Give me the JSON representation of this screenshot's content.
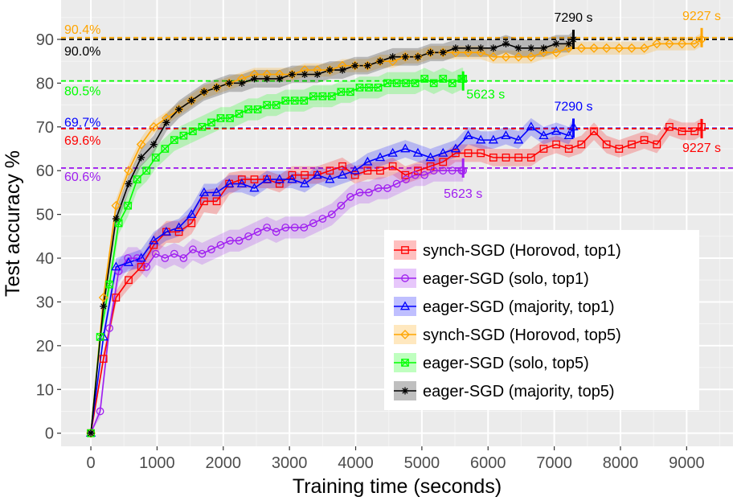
{
  "chart_data": {
    "type": "line",
    "xlabel": "Training time (seconds)",
    "ylabel": "Test accuracy %",
    "xlim": [
      -450,
      9700
    ],
    "ylim": [
      -3,
      99
    ],
    "xticks": [
      0,
      1000,
      2000,
      3000,
      4000,
      5000,
      6000,
      7000,
      8000,
      9000
    ],
    "xtick_labels": [
      "0",
      "1000",
      "2000",
      "3000",
      "4000",
      "5000",
      "6000",
      "7000",
      "8000",
      "9000"
    ],
    "yticks": [
      0,
      10,
      20,
      30,
      40,
      50,
      60,
      70,
      80,
      90
    ],
    "ytick_labels": [
      "0",
      "10",
      "20",
      "30",
      "40",
      "50",
      "60",
      "70",
      "80",
      "90"
    ],
    "grid": true,
    "series": [
      {
        "name": "synch-SGD (Horovod, top1)",
        "color": "#ff0000",
        "marker": "square",
        "x": [
          0,
          190,
          380,
          570,
          760,
          950,
          1140,
          1330,
          1520,
          1710,
          1900,
          2090,
          2280,
          2470,
          2660,
          2850,
          3040,
          3230,
          3420,
          3610,
          3800,
          3990,
          4180,
          4370,
          4560,
          4750,
          4940,
          5130,
          5320,
          5510,
          5700,
          5890,
          6080,
          6270,
          6460,
          6650,
          6840,
          7030,
          7220,
          7410,
          7600,
          7790,
          7980,
          8170,
          8360,
          8550,
          8740,
          8930,
          9120,
          9227
        ],
        "y": [
          0,
          17,
          31,
          35,
          38,
          43,
          46,
          46,
          48,
          53,
          53,
          57,
          58,
          58,
          58,
          57,
          59,
          59,
          59,
          60,
          61,
          59,
          60,
          60,
          61,
          59,
          60,
          61,
          62,
          64,
          64,
          64,
          63,
          63,
          63,
          63,
          65,
          66,
          65,
          66,
          69,
          66,
          65,
          66,
          67,
          66,
          70,
          69,
          69,
          70
        ],
        "band": [
          0,
          1.5,
          1.5,
          2,
          2,
          2.5,
          2.5,
          2.5,
          2.5,
          2.5,
          3,
          2.5,
          2,
          2,
          2,
          2,
          2,
          2,
          2,
          2,
          2,
          2,
          2,
          2,
          2,
          2,
          2,
          2,
          2,
          2,
          2,
          2,
          2,
          2,
          2,
          2,
          2,
          2,
          2,
          2,
          2,
          2,
          2,
          2,
          2,
          2,
          2,
          2,
          2,
          2
        ]
      },
      {
        "name": "eager-SGD (solo, top1)",
        "color": "#a020f0",
        "marker": "circle",
        "x": [
          0,
          140,
          280,
          420,
          560,
          700,
          840,
          980,
          1120,
          1260,
          1400,
          1540,
          1680,
          1820,
          1960,
          2100,
          2240,
          2380,
          2520,
          2660,
          2800,
          2940,
          3080,
          3220,
          3360,
          3500,
          3640,
          3780,
          3920,
          4060,
          4200,
          4340,
          4480,
          4620,
          4760,
          4900,
          5040,
          5180,
          5320,
          5460,
          5600,
          5623
        ],
        "y": [
          0,
          5,
          24,
          37,
          40,
          40,
          38,
          41,
          40,
          41,
          40,
          42,
          41,
          42,
          43,
          44,
          44,
          45,
          46,
          47,
          46,
          47,
          47,
          47,
          48,
          49,
          50,
          52,
          54,
          55,
          55,
          56,
          56,
          57,
          58,
          59,
          59,
          60,
          60,
          60,
          60,
          60
        ],
        "band": [
          0,
          1.5,
          2,
          2.5,
          2.5,
          2.5,
          2.5,
          2.5,
          2.5,
          2.5,
          2.5,
          2.5,
          2.5,
          2.5,
          2.5,
          2.5,
          2.5,
          2.5,
          2.5,
          2.5,
          2.5,
          2.5,
          2.5,
          2.5,
          2.5,
          2.5,
          2.5,
          2.5,
          2.5,
          2.5,
          2.5,
          2.5,
          2.5,
          2.5,
          2.5,
          2.5,
          2.5,
          2.5,
          2.5,
          2.5,
          2.5,
          2.5
        ]
      },
      {
        "name": "eager-SGD (majority, top1)",
        "color": "#0000ff",
        "marker": "triangle",
        "x": [
          0,
          190,
          380,
          570,
          760,
          950,
          1140,
          1330,
          1520,
          1710,
          1900,
          2090,
          2280,
          2470,
          2660,
          2850,
          3040,
          3230,
          3420,
          3610,
          3800,
          3990,
          4180,
          4370,
          4560,
          4750,
          4940,
          5130,
          5320,
          5510,
          5700,
          5890,
          6080,
          6270,
          6460,
          6650,
          6840,
          7030,
          7220,
          7290
        ],
        "y": [
          0,
          22,
          38,
          39,
          40,
          44,
          46,
          47,
          50,
          55,
          55,
          57,
          57,
          56,
          58,
          58,
          58,
          57,
          59,
          58,
          59,
          60,
          62,
          63,
          64,
          65,
          64,
          63,
          64,
          65,
          68,
          67,
          67,
          68,
          67,
          70,
          68,
          69,
          68,
          70
        ],
        "band": [
          0,
          1.5,
          2,
          2,
          2,
          2,
          2,
          2,
          2,
          2,
          2,
          2,
          2,
          2,
          2,
          2,
          2,
          2,
          2,
          2,
          2,
          2,
          2,
          2,
          2,
          2,
          2,
          2,
          2,
          2,
          2,
          2,
          2,
          2,
          2,
          2,
          2,
          2,
          2,
          2
        ]
      },
      {
        "name": "synch-SGD (Horovod, top5)",
        "color": "#ffa500",
        "marker": "diamond",
        "x": [
          0,
          190,
          380,
          570,
          760,
          950,
          1140,
          1330,
          1520,
          1710,
          1900,
          2090,
          2280,
          2470,
          2660,
          2850,
          3040,
          3230,
          3420,
          3610,
          3800,
          3990,
          4180,
          4370,
          4560,
          4750,
          4940,
          5130,
          5320,
          5510,
          5700,
          5890,
          6080,
          6270,
          6460,
          6650,
          6840,
          7030,
          7220,
          7410,
          7600,
          7790,
          7980,
          8170,
          8360,
          8550,
          8740,
          8930,
          9120,
          9227
        ],
        "y": [
          0,
          31,
          52,
          60,
          66,
          70,
          72,
          74,
          76,
          78,
          79,
          80,
          81,
          82,
          82,
          82,
          82,
          83,
          83,
          83,
          84,
          84,
          84,
          85,
          85,
          86,
          86,
          87,
          87,
          87,
          87,
          87,
          86,
          86,
          86,
          86,
          87,
          87,
          88,
          88,
          88,
          88,
          88,
          88,
          88,
          89,
          89,
          89,
          89,
          90
        ],
        "band": [
          0,
          1,
          1.5,
          1.5,
          1.5,
          1.5,
          1.5,
          1.5,
          1.5,
          1.5,
          1.5,
          1.5,
          1.5,
          1.5,
          1.5,
          1.5,
          1.5,
          1.5,
          1.5,
          1.5,
          1.5,
          1.5,
          1.5,
          1.5,
          1.5,
          1.5,
          1.5,
          1.5,
          1.5,
          1.5,
          1.5,
          1.5,
          1.5,
          1.5,
          1.5,
          1.5,
          1.5,
          1.5,
          1.5,
          1.5,
          1.5,
          1.5,
          1.5,
          1.5,
          1.5,
          1.5,
          1.5,
          1.5,
          1.5,
          1.5
        ]
      },
      {
        "name": "eager-SGD (solo, top5)",
        "color": "#00ff00",
        "marker": "square-x",
        "x": [
          0,
          140,
          280,
          420,
          560,
          700,
          840,
          980,
          1120,
          1260,
          1400,
          1540,
          1680,
          1820,
          1960,
          2100,
          2240,
          2380,
          2520,
          2660,
          2800,
          2940,
          3080,
          3220,
          3360,
          3500,
          3640,
          3780,
          3920,
          4060,
          4200,
          4340,
          4480,
          4620,
          4760,
          4900,
          5040,
          5180,
          5320,
          5460,
          5600,
          5623
        ],
        "y": [
          0,
          22,
          34,
          48,
          52,
          58,
          60,
          63,
          65,
          67,
          68,
          69,
          70,
          71,
          72,
          72,
          73,
          74,
          74,
          75,
          75,
          76,
          76,
          76,
          77,
          77,
          77,
          78,
          78,
          79,
          79,
          79,
          80,
          80,
          80,
          80,
          81,
          80,
          81,
          80,
          81,
          81
        ],
        "band": [
          0,
          1.5,
          2.5,
          2.5,
          2.5,
          2.5,
          2.5,
          2.5,
          2.5,
          2.5,
          2.5,
          2.5,
          2.5,
          2.5,
          2.5,
          2.5,
          2.5,
          2.5,
          2.5,
          2.5,
          2.5,
          2.5,
          2.5,
          2.5,
          2.5,
          2.5,
          2.5,
          2.5,
          2.5,
          2.5,
          2.5,
          2.5,
          2.5,
          2.5,
          2.5,
          2.5,
          2.5,
          2.5,
          2.5,
          2.5,
          2.5,
          2.5
        ]
      },
      {
        "name": "eager-SGD (majority, top5)",
        "color": "#000000",
        "marker": "star",
        "x": [
          0,
          190,
          380,
          570,
          760,
          950,
          1140,
          1330,
          1520,
          1710,
          1900,
          2090,
          2280,
          2470,
          2660,
          2850,
          3040,
          3230,
          3420,
          3610,
          3800,
          3990,
          4180,
          4370,
          4560,
          4750,
          4940,
          5130,
          5320,
          5510,
          5700,
          5890,
          6080,
          6270,
          6460,
          6650,
          6840,
          7030,
          7220,
          7290
        ],
        "y": [
          0,
          29,
          49,
          57,
          63,
          66,
          71,
          74,
          76,
          78,
          79,
          80,
          80,
          81,
          81,
          81,
          82,
          82,
          82,
          83,
          83,
          84,
          84,
          85,
          86,
          86,
          86,
          87,
          87,
          88,
          88,
          88,
          88,
          89,
          88,
          88,
          88,
          89,
          89,
          90
        ],
        "band": [
          0,
          1.5,
          2,
          2,
          2,
          2,
          2,
          2,
          2,
          2,
          2,
          2,
          2,
          2,
          2,
          2,
          2,
          2,
          2,
          2,
          2,
          2,
          2,
          2,
          2,
          2,
          2,
          2,
          2,
          2,
          2,
          2,
          2,
          2,
          2,
          2,
          2,
          2,
          2,
          2
        ]
      }
    ],
    "hlines": [
      {
        "y": 90.4,
        "color": "#ffa500",
        "label": "90.4%"
      },
      {
        "y": 90.0,
        "color": "#000000",
        "label": "90.0%"
      },
      {
        "y": 80.5,
        "color": "#00ff00",
        "label": "80.5%"
      },
      {
        "y": 69.7,
        "color": "#0000ff",
        "label": "69.7%"
      },
      {
        "y": 69.6,
        "color": "#ff0000",
        "label": "69.6%"
      },
      {
        "y": 60.6,
        "color": "#a020f0",
        "label": "60.6%"
      }
    ],
    "end_markers": [
      {
        "x": 7290,
        "y": 90.0,
        "color": "#000000",
        "label": "7290 s"
      },
      {
        "x": 9227,
        "y": 90.4,
        "color": "#ffa500",
        "label": "9227 s"
      },
      {
        "x": 5623,
        "y": 80.5,
        "color": "#00ff00",
        "label": "5623 s"
      },
      {
        "x": 7290,
        "y": 69.7,
        "color": "#0000ff",
        "label": "7290 s"
      },
      {
        "x": 9227,
        "y": 69.6,
        "color": "#ff0000",
        "label": "9227 s"
      },
      {
        "x": 5623,
        "y": 60.6,
        "color": "#a020f0",
        "label": "5623 s"
      }
    ],
    "legend_position": "bottom-right"
  }
}
